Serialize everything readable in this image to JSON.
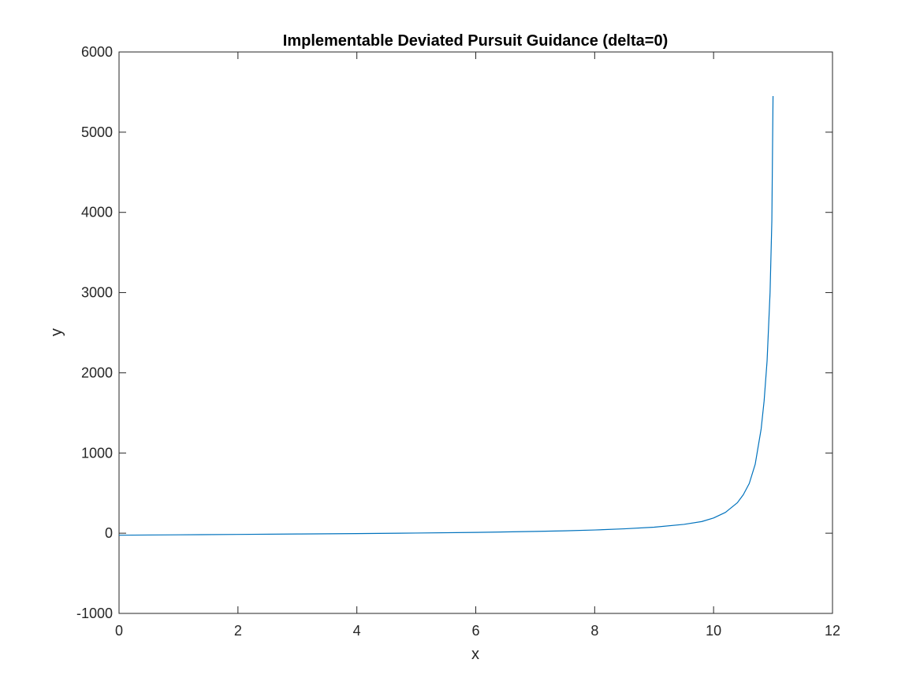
{
  "chart_data": {
    "type": "line",
    "title": "Implementable Deviated Pursuit Guidance (delta=0)",
    "xlabel": "x",
    "ylabel": "y",
    "xlim": [
      0,
      12
    ],
    "ylim": [
      -1000,
      6000
    ],
    "xticks": [
      0,
      2,
      4,
      6,
      8,
      10,
      12
    ],
    "yticks": [
      -1000,
      0,
      1000,
      2000,
      3000,
      4000,
      5000,
      6000
    ],
    "xtick_labels": [
      "0",
      "2",
      "4",
      "6",
      "8",
      "10",
      "12"
    ],
    "ytick_labels": [
      "-1000",
      "0",
      "1000",
      "2000",
      "3000",
      "4000",
      "5000",
      "6000"
    ],
    "grid": false,
    "legend": "none",
    "series": [
      {
        "color": "#0072BD",
        "x": [
          0,
          1,
          2,
          3,
          4,
          5,
          6,
          7,
          7.5,
          8,
          8.5,
          9,
          9.5,
          9.8,
          10,
          10.2,
          10.4,
          10.5,
          10.6,
          10.7,
          10.8,
          10.85,
          10.9,
          10.95,
          10.98,
          11.0
        ],
        "y": [
          -25,
          -20,
          -15,
          -10,
          -5,
          2,
          10,
          22,
          30,
          40,
          55,
          75,
          110,
          145,
          190,
          260,
          380,
          480,
          620,
          860,
          1300,
          1650,
          2150,
          3000,
          3900,
          5450
        ]
      }
    ]
  }
}
